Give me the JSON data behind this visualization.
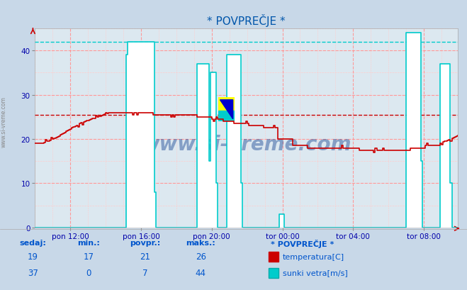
{
  "title": "* POVPREČJE *",
  "bg_color": "#c8d8e8",
  "plot_bg_color": "#dce8f0",
  "ylim": [
    0,
    45
  ],
  "yticks": [
    0,
    10,
    20,
    30,
    40
  ],
  "xtick_labels": [
    "pon 12:00",
    "pon 16:00",
    "pon 20:00",
    "tor 00:00",
    "tor 04:00",
    "tor 08:00"
  ],
  "temp_color": "#cc0000",
  "wind_color": "#00cccc",
  "wind_outline_color": "#00aaaa",
  "temp_avg_line": 25.5,
  "wind_avg_line": 42.0,
  "grid_color": "#ff9999",
  "grid_minor_color": "#ffcccc",
  "watermark": "www.si-vreme.com",
  "table_header_color": "#0055cc",
  "table_value_color": "#0055cc",
  "table_sedaj": [
    19,
    37
  ],
  "table_min": [
    17,
    0
  ],
  "table_povpr": [
    21,
    7
  ],
  "table_maks": [
    26,
    44
  ],
  "n_points": 288
}
